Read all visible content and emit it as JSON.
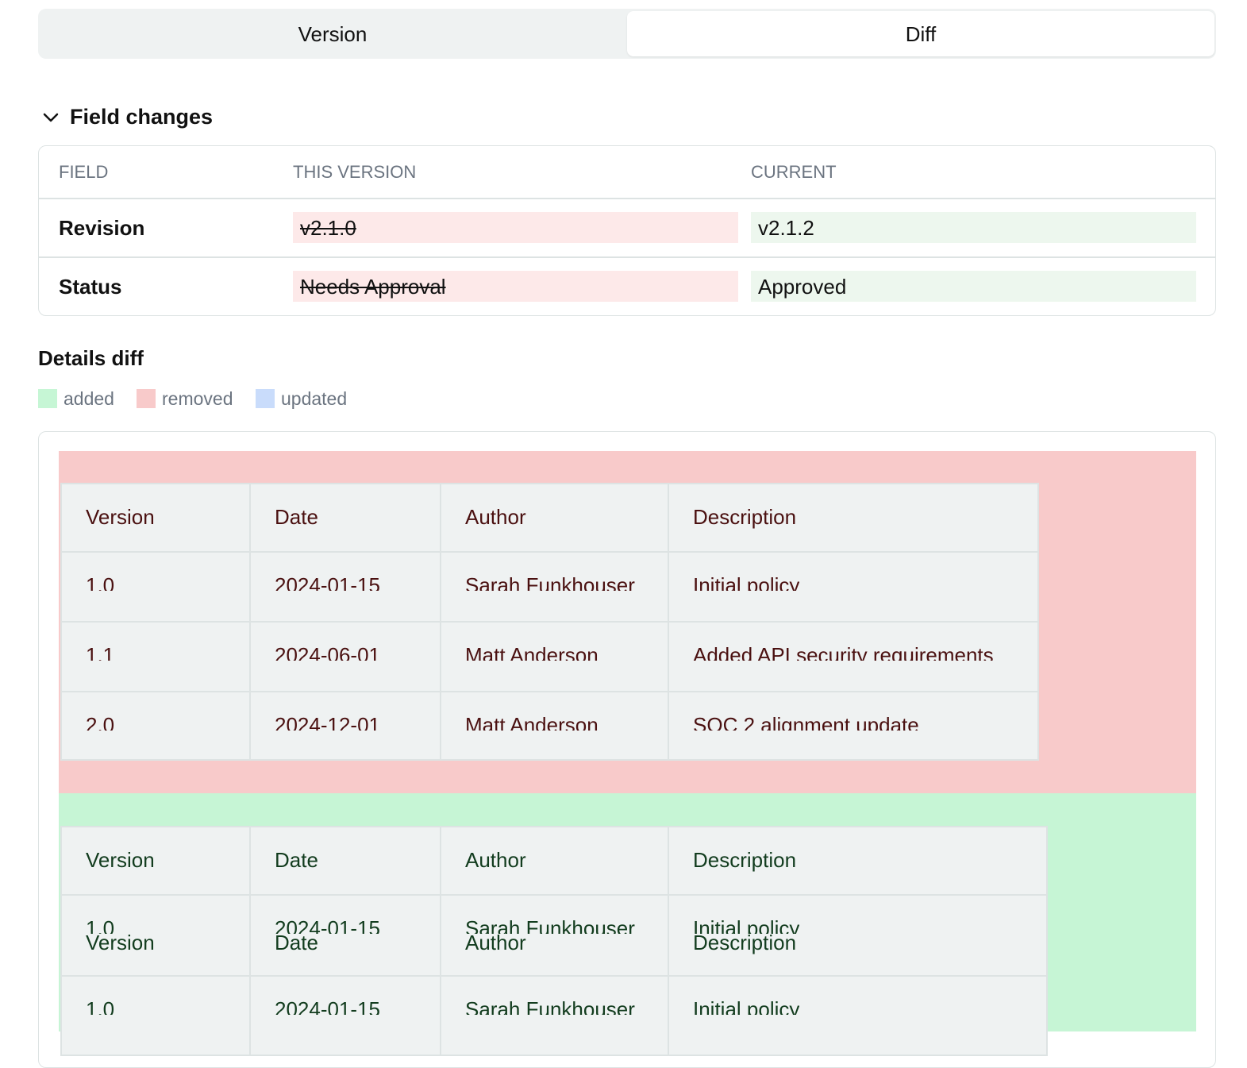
{
  "tabs": [
    "Version",
    "Diff"
  ],
  "field_changes": {
    "title": "Field changes",
    "headers": [
      "FIELD",
      "THIS VERSION",
      "CURRENT"
    ],
    "rows": [
      [
        "Revision",
        "v2.1.0",
        "v2.1.2"
      ],
      [
        "Status",
        "Needs Approval",
        "Approved"
      ]
    ]
  },
  "details_diff": {
    "title": "Details diff",
    "legend": [
      "added",
      "removed",
      "updated"
    ],
    "removed_table": {
      "headers": [
        "Version",
        "Date",
        "Author",
        "Description"
      ],
      "rows": [
        [
          "1.0",
          "2024-01-15",
          "Sarah Funkhouser",
          "Initial policy"
        ],
        [
          "1.1",
          "2024-06-01",
          "Matt Anderson",
          "Added API security requirements"
        ],
        [
          "2.0",
          "2024-12-01",
          "Matt Anderson",
          "SOC 2 alignment update"
        ]
      ]
    },
    "added_table": {
      "headers": [
        "Version",
        "Date",
        "Author",
        "Description"
      ],
      "rows": [
        [
          "1.0",
          "2024-01-15",
          "Sarah Funkhouser",
          "Initial policy"
        ],
        [
          "1.0",
          "2024-01-15",
          "Sarah Funkhouser",
          "Initial policy"
        ]
      ],
      "overlay_headers": [
        "Version",
        "Date",
        "Author",
        "Description"
      ]
    }
  }
}
